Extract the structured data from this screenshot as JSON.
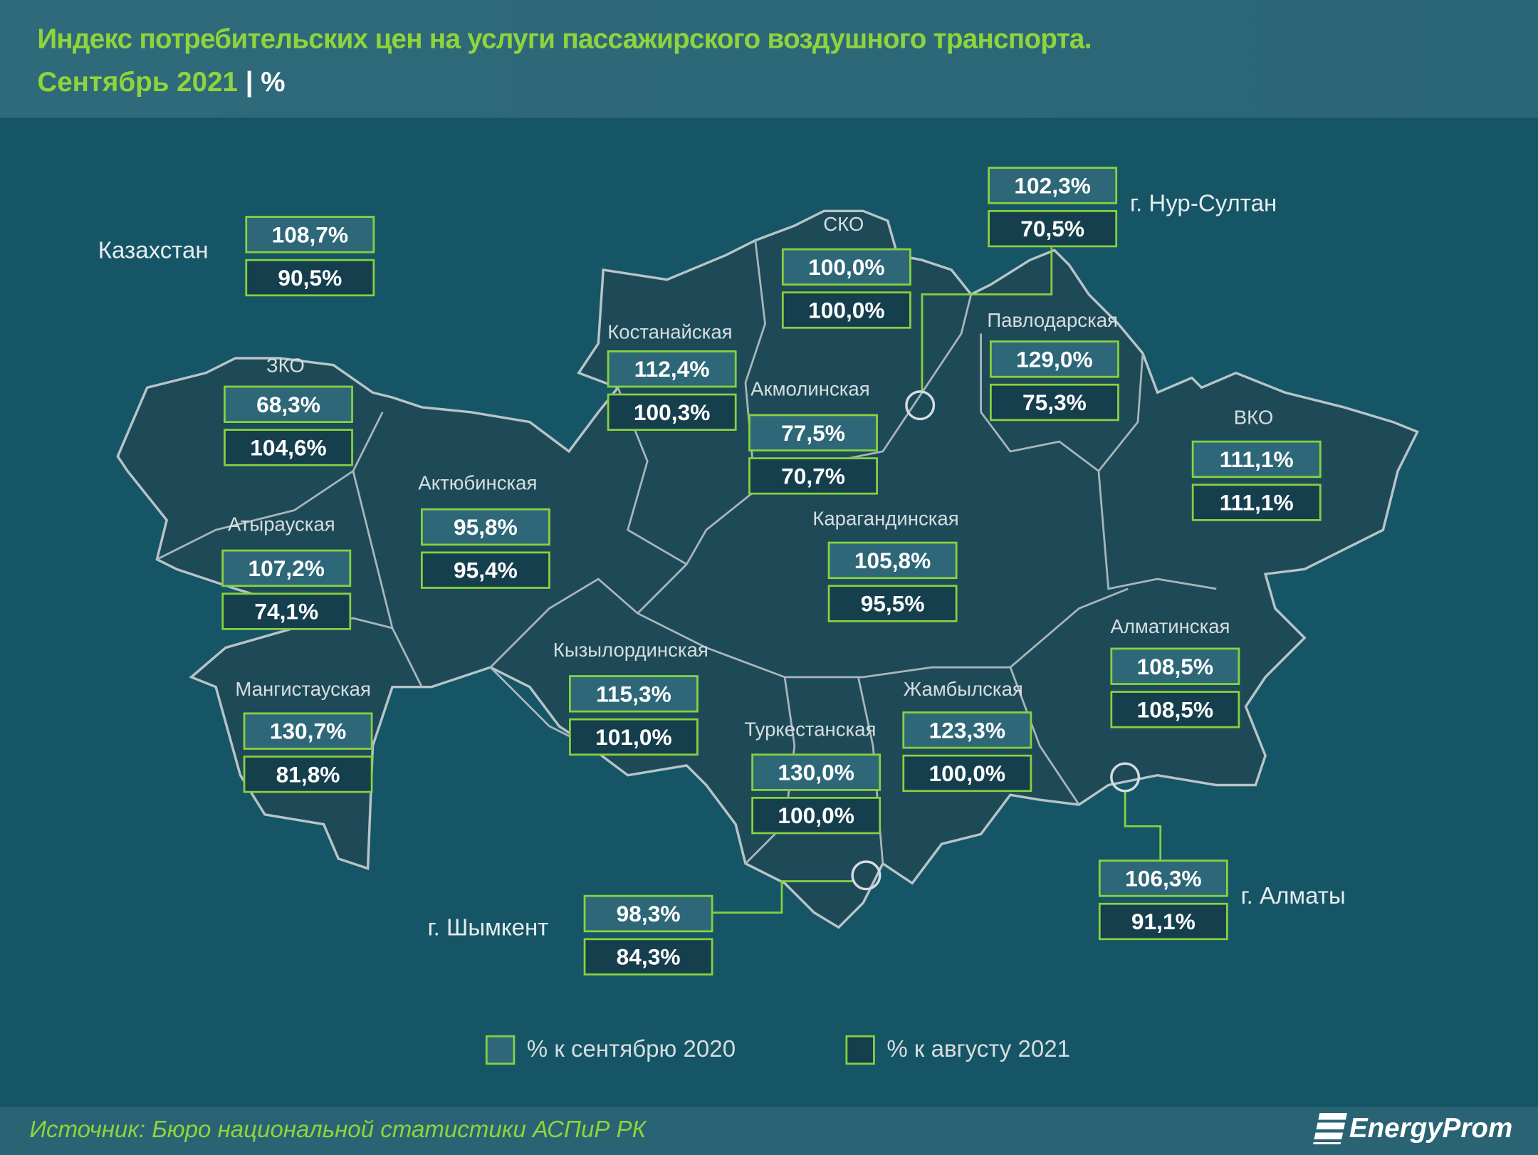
{
  "title": "Индекс потребительских цен на услуги пассажирского воздушного транспорта.",
  "subtitle": "Сентябрь 2021",
  "unit": "%",
  "legend": [
    {
      "label": "% к сентябрю 2020",
      "color": "#2e6878"
    },
    {
      "label": "% к августу 2021",
      "color": "#163f4d"
    }
  ],
  "source": "Источник: Бюро национальной статистики АСПиР РК",
  "logo": "EnergyProm",
  "colors": {
    "accent": "#8fd43c",
    "background": "#155566",
    "region": "#1e4a58",
    "box_border": "#86d23f"
  },
  "chart_data": {
    "type": "table",
    "title": "Индекс потребительских цен на услуги пассажирского воздушного транспорта. Сентябрь 2021 | %",
    "columns": [
      "% к сентябрю 2020",
      "% к августу 2021"
    ],
    "regions": [
      {
        "name": "Казахстан",
        "sep2020": "108,7%",
        "aug2021": "90,5%"
      },
      {
        "name": "г. Нур-Султан",
        "sep2020": "102,3%",
        "aug2021": "70,5%"
      },
      {
        "name": "СКО",
        "sep2020": "100,0%",
        "aug2021": "100,0%"
      },
      {
        "name": "Костанайская",
        "sep2020": "112,4%",
        "aug2021": "100,3%"
      },
      {
        "name": "Акмолинская",
        "sep2020": "77,5%",
        "aug2021": "70,7%"
      },
      {
        "name": "Павлодарская",
        "sep2020": "129,0%",
        "aug2021": "75,3%"
      },
      {
        "name": "ЗКО",
        "sep2020": "68,3%",
        "aug2021": "104,6%"
      },
      {
        "name": "ВКО",
        "sep2020": "111,1%",
        "aug2021": "111,1%"
      },
      {
        "name": "Актюбинская",
        "sep2020": "95,8%",
        "aug2021": "95,4%"
      },
      {
        "name": "Атырауская",
        "sep2020": "107,2%",
        "aug2021": "74,1%"
      },
      {
        "name": "Карагандинская",
        "sep2020": "105,8%",
        "aug2021": "95,5%"
      },
      {
        "name": "Алматинская",
        "sep2020": "108,5%",
        "aug2021": "108,5%"
      },
      {
        "name": "Мангистауская",
        "sep2020": "130,7%",
        "aug2021": "81,8%"
      },
      {
        "name": "Кызылординская",
        "sep2020": "115,3%",
        "aug2021": "101,0%"
      },
      {
        "name": "Туркестанская",
        "sep2020": "130,0%",
        "aug2021": "100,0%"
      },
      {
        "name": "Жамбылская",
        "sep2020": "123,3%",
        "aug2021": "100,0%"
      },
      {
        "name": "г. Шымкент",
        "sep2020": "98,3%",
        "aug2021": "84,3%"
      },
      {
        "name": "г. Алматы",
        "sep2020": "106,3%",
        "aug2021": "91,1%"
      }
    ]
  }
}
